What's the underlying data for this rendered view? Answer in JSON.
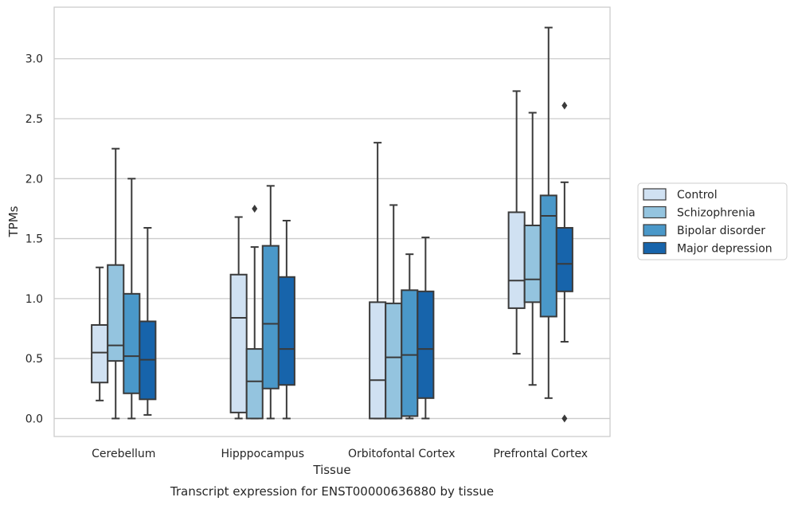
{
  "chart_data": {
    "type": "box",
    "title": "",
    "caption": "Transcript expression for ENST00000636880 by tissue",
    "xlabel": "Tissue",
    "ylabel": "TPMs",
    "ylim": [
      -0.15,
      3.43
    ],
    "yticks": [
      0.0,
      0.5,
      1.0,
      1.5,
      2.0,
      2.5,
      3.0
    ],
    "ytick_labels": [
      "0.0",
      "0.5",
      "1.0",
      "1.5",
      "2.0",
      "2.5",
      "3.0"
    ],
    "grid": "horizontal",
    "legend_position": "right",
    "categories": [
      "Cerebellum",
      "Hipppocampus",
      "Orbitofontal Cortex",
      "Prefrontal Cortex"
    ],
    "series": [
      {
        "name": "Control",
        "color": "#d0e1f2",
        "boxes": [
          {
            "whislo": 0.15,
            "q1": 0.3,
            "med": 0.55,
            "q3": 0.78,
            "whishi": 1.26,
            "fliers": []
          },
          {
            "whislo": 0.0,
            "q1": 0.05,
            "med": 0.84,
            "q3": 1.2,
            "whishi": 1.68,
            "fliers": []
          },
          {
            "whislo": 0.0,
            "q1": 0.0,
            "med": 0.32,
            "q3": 0.97,
            "whishi": 2.3,
            "fliers": []
          },
          {
            "whislo": 0.54,
            "q1": 0.92,
            "med": 1.15,
            "q3": 1.72,
            "whishi": 2.73,
            "fliers": []
          }
        ]
      },
      {
        "name": "Schizophrenia",
        "color": "#94c4df",
        "boxes": [
          {
            "whislo": 0.0,
            "q1": 0.48,
            "med": 0.61,
            "q3": 1.28,
            "whishi": 2.25,
            "fliers": []
          },
          {
            "whislo": 0.0,
            "q1": 0.0,
            "med": 0.31,
            "q3": 0.58,
            "whishi": 1.43,
            "fliers": [
              1.75
            ]
          },
          {
            "whislo": 0.0,
            "q1": 0.0,
            "med": 0.51,
            "q3": 0.96,
            "whishi": 1.78,
            "fliers": []
          },
          {
            "whislo": 0.28,
            "q1": 0.97,
            "med": 1.16,
            "q3": 1.61,
            "whishi": 2.55,
            "fliers": []
          }
        ]
      },
      {
        "name": "Bipolar disorder",
        "color": "#4a98c9",
        "boxes": [
          {
            "whislo": 0.0,
            "q1": 0.21,
            "med": 0.52,
            "q3": 1.04,
            "whishi": 2.0,
            "fliers": []
          },
          {
            "whislo": 0.0,
            "q1": 0.25,
            "med": 0.79,
            "q3": 1.44,
            "whishi": 1.94,
            "fliers": []
          },
          {
            "whislo": 0.0,
            "q1": 0.02,
            "med": 0.53,
            "q3": 1.07,
            "whishi": 1.37,
            "fliers": []
          },
          {
            "whislo": 0.17,
            "q1": 0.85,
            "med": 1.69,
            "q3": 1.86,
            "whishi": 3.26,
            "fliers": []
          }
        ]
      },
      {
        "name": "Major depression",
        "color": "#1764ab",
        "boxes": [
          {
            "whislo": 0.03,
            "q1": 0.16,
            "med": 0.49,
            "q3": 0.81,
            "whishi": 1.59,
            "fliers": []
          },
          {
            "whislo": 0.0,
            "q1": 0.28,
            "med": 0.58,
            "q3": 1.18,
            "whishi": 1.65,
            "fliers": []
          },
          {
            "whislo": 0.0,
            "q1": 0.17,
            "med": 0.58,
            "q3": 1.06,
            "whishi": 1.51,
            "fliers": []
          },
          {
            "whislo": 0.64,
            "q1": 1.06,
            "med": 1.29,
            "q3": 1.59,
            "whishi": 1.97,
            "fliers": [
              2.61,
              0.0
            ]
          }
        ]
      }
    ]
  }
}
